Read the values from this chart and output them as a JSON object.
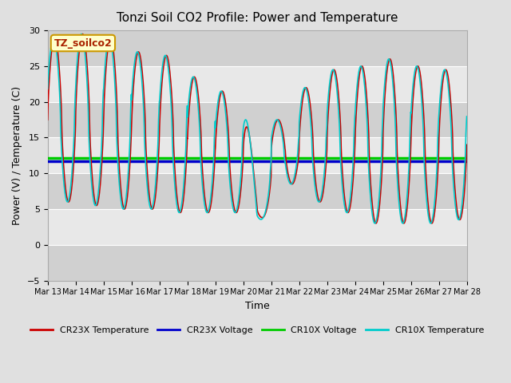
{
  "title": "Tonzi Soil CO2 Profile: Power and Temperature",
  "xlabel": "Time",
  "ylabel": "Power (V) / Temperature (C)",
  "ylim": [
    -5,
    30
  ],
  "yticks": [
    -5,
    0,
    5,
    10,
    15,
    20,
    25,
    30
  ],
  "cr23x_voltage": 11.75,
  "cr10x_voltage": 12.1,
  "label_box_text": "TZ_soilco2",
  "legend_entries": [
    "CR23X Temperature",
    "CR23X Voltage",
    "CR10X Voltage",
    "CR10X Temperature"
  ],
  "cr23x_temp_color": "#cc0000",
  "cr23x_volt_color": "#0000cc",
  "cr10x_volt_color": "#00cc00",
  "cr10x_temp_color": "#00cccc",
  "fig_bg": "#e0e0e0",
  "plot_bg_light": "#e8e8e8",
  "plot_bg_dark": "#d0d0d0",
  "date_start": 13,
  "date_end": 28,
  "n_points": 2000
}
